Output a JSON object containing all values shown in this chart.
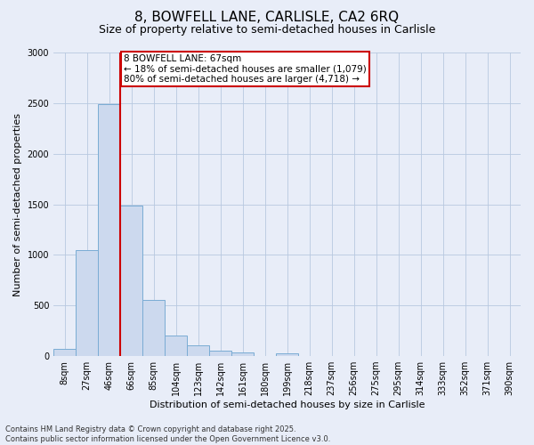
{
  "title_line1": "8, BOWFELL LANE, CARLISLE, CA2 6RQ",
  "title_line2": "Size of property relative to semi-detached houses in Carlisle",
  "xlabel": "Distribution of semi-detached houses by size in Carlisle",
  "ylabel": "Number of semi-detached properties",
  "categories": [
    "8sqm",
    "27sqm",
    "46sqm",
    "66sqm",
    "85sqm",
    "104sqm",
    "123sqm",
    "142sqm",
    "161sqm",
    "180sqm",
    "199sqm",
    "218sqm",
    "237sqm",
    "256sqm",
    "275sqm",
    "295sqm",
    "314sqm",
    "333sqm",
    "352sqm",
    "371sqm",
    "390sqm"
  ],
  "values": [
    70,
    1050,
    2490,
    1490,
    555,
    200,
    110,
    55,
    35,
    0,
    28,
    0,
    0,
    0,
    0,
    0,
    0,
    0,
    0,
    0,
    0
  ],
  "bar_color": "#ccd9ee",
  "bar_edge_color": "#7aacd4",
  "vline_color": "#cc0000",
  "vline_index": 2.5,
  "annotation_text": "8 BOWFELL LANE: 67sqm\n← 18% of semi-detached houses are smaller (1,079)\n80% of semi-detached houses are larger (4,718) →",
  "annotation_box_color": "#ffffff",
  "annotation_box_edge_color": "#cc0000",
  "ylim": [
    0,
    3000
  ],
  "yticks": [
    0,
    500,
    1000,
    1500,
    2000,
    2500,
    3000
  ],
  "background_color": "#e8edf8",
  "footer_line1": "Contains HM Land Registry data © Crown copyright and database right 2025.",
  "footer_line2": "Contains public sector information licensed under the Open Government Licence v3.0.",
  "title_fontsize": 11,
  "subtitle_fontsize": 9,
  "label_fontsize": 8,
  "tick_fontsize": 7,
  "footer_fontsize": 6
}
